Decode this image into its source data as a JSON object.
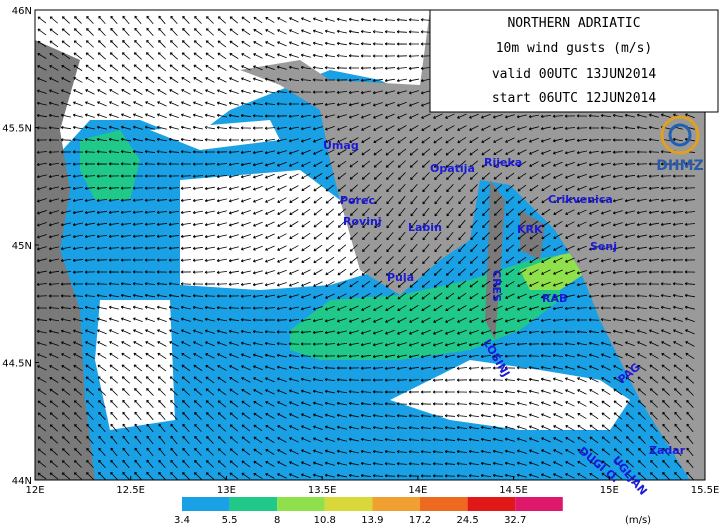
{
  "header": {
    "lines": [
      "NORTHERN ADRIATIC",
      "10m wind gusts (m/s)",
      "valid 00UTC 13JUN2014",
      "start 06UTC 12JUN2014"
    ],
    "logo": "DHMZ"
  },
  "axes": {
    "x_labels": [
      "12E",
      "12.5E",
      "13E",
      "13.5E",
      "14E",
      "14.5E",
      "15E",
      "15.5E"
    ],
    "y_labels": [
      "44N",
      "44.5N",
      "45N",
      "45.5N",
      "46N"
    ]
  },
  "places": [
    "Umag",
    "Porec",
    "Rovinj",
    "Labin",
    "Pula",
    "Opatija",
    "Rijeka",
    "Crikvenica",
    "KRK",
    "Senj",
    "CRES",
    "RAB",
    "LOSINJ",
    "PAG",
    "Zadar",
    "UGLJAN",
    "DUGI O."
  ],
  "colorbar": {
    "labels": [
      "3.4",
      "5.5",
      "8",
      "10.8",
      "13.9",
      "17.2",
      "24.5",
      "32.7"
    ],
    "colors": [
      "#1aa0e4",
      "#1aa0e4",
      "#20c88a",
      "#8fe04a",
      "#d8d83a",
      "#f0a030",
      "#ee6a20",
      "#e01818",
      "#e0186c"
    ],
    "unit": "(m/s)"
  }
}
